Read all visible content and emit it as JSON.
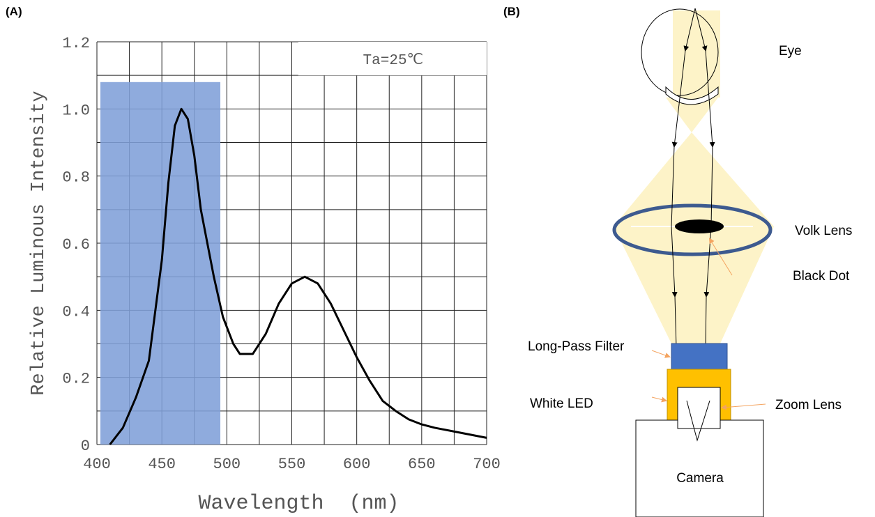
{
  "panels": [
    "(A)",
    "(B)"
  ],
  "chart_data": {
    "type": "line",
    "annotation": "Ta=25℃",
    "x_label": "Wavelength  (nm)",
    "y_label": "Relative Luminous Intensity",
    "xlim": [
      400,
      700
    ],
    "ylim": [
      0,
      1.2
    ],
    "xticks": [
      400,
      450,
      500,
      550,
      600,
      650,
      700
    ],
    "yticks": [
      0,
      0.2,
      0.4,
      0.6,
      0.8,
      {
        "value": 1,
        "label": "1.0"
      },
      1.2
    ],
    "xgrid": [
      425,
      475,
      525,
      575,
      625,
      675
    ],
    "ygrid": [
      0.1,
      0.3,
      0.5,
      0.7,
      0.9,
      1.1
    ],
    "grid": true,
    "highlight": {
      "xlim": [
        400,
        495
      ],
      "ylim": [
        0,
        1.08
      ],
      "color": "#7f9fd8"
    },
    "series": [
      {
        "name": null,
        "color": "#000000",
        "x": [
          410,
          420,
          430,
          440,
          450,
          455,
          460,
          465,
          470,
          475,
          480,
          490,
          497,
          505,
          510,
          520,
          530,
          540,
          550,
          560,
          570,
          580,
          590,
          600,
          610,
          620,
          630,
          640,
          650,
          660,
          680,
          700
        ],
        "values": [
          0,
          0.05,
          0.14,
          0.25,
          0.55,
          0.78,
          0.95,
          1.0,
          0.97,
          0.86,
          0.7,
          0.5,
          0.38,
          0.3,
          0.27,
          0.27,
          0.33,
          0.42,
          0.48,
          0.5,
          0.48,
          0.42,
          0.34,
          0.26,
          0.19,
          0.13,
          0.1,
          0.075,
          0.06,
          0.05,
          0.035,
          0.02
        ]
      }
    ]
  },
  "diagram": {
    "labels": {
      "eye": "Eye",
      "volk_lens": "Volk Lens",
      "black_dot": "Black Dot",
      "long_pass_filter": "Long-Pass Filter",
      "white_led": "White LED",
      "zoom_lens": "Zoom Lens",
      "camera": "Camera"
    }
  }
}
